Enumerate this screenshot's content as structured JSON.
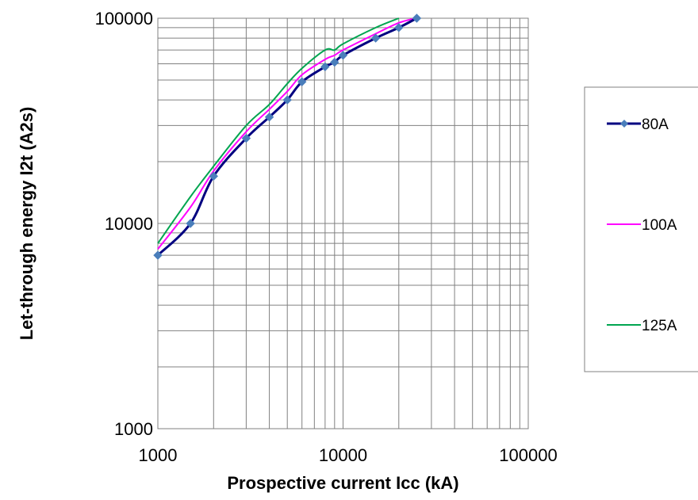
{
  "chart_data": {
    "type": "line",
    "xlabel": "Prospective current Icc (kA)",
    "ylabel": "Let-through energy I2t (A2s)",
    "x_scale": "log",
    "y_scale": "log",
    "xlim": [
      1000,
      100000
    ],
    "ylim": [
      1000,
      100000
    ],
    "x_ticks": [
      "1000",
      "10000",
      "100000"
    ],
    "y_ticks": [
      "1000",
      "10000",
      "100000"
    ],
    "grid": "on",
    "legend_position": "right",
    "series": [
      {
        "name": "80A",
        "color": "#000080",
        "marker": "diamond",
        "marker_color": "#4a7ebb",
        "x": [
          1000,
          1500,
          2000,
          3000,
          4000,
          5000,
          6000,
          8000,
          9000,
          10000,
          15000,
          20000,
          25000
        ],
        "y": [
          7000,
          10000,
          17000,
          26000,
          33000,
          40000,
          49000,
          58000,
          61000,
          66000,
          80000,
          90000,
          100000
        ]
      },
      {
        "name": "100A",
        "color": "#ff00ff",
        "marker": "none",
        "x": [
          1000,
          1500,
          2000,
          3000,
          4000,
          5000,
          6000,
          8000,
          9000,
          10000,
          15000,
          20000,
          25000
        ],
        "y": [
          7500,
          12000,
          18000,
          28000,
          36000,
          44000,
          53000,
          63000,
          66000,
          70000,
          84000,
          95000,
          100000
        ]
      },
      {
        "name": "125A",
        "color": "#00a550",
        "marker": "none",
        "x": [
          1000,
          1500,
          2000,
          3000,
          4000,
          5000,
          6000,
          8000,
          9000,
          10000,
          15000,
          20000
        ],
        "y": [
          8000,
          13500,
          19000,
          30000,
          38000,
          48000,
          57000,
          70000,
          70000,
          75000,
          90000,
          100000
        ]
      }
    ]
  }
}
